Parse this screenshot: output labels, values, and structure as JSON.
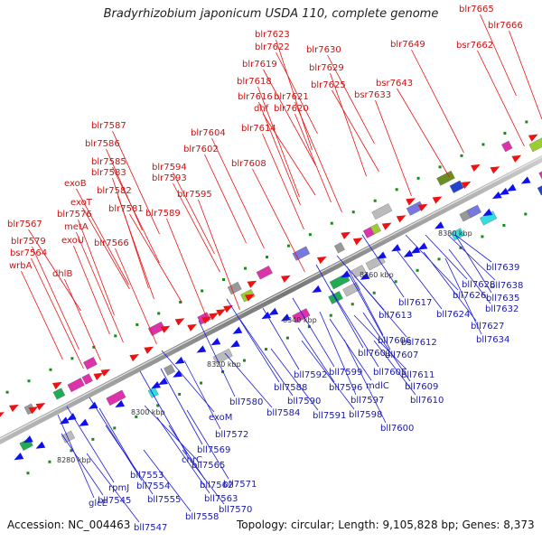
{
  "title": "Bradyrhizobium japonicum USDA 110, complete genome",
  "footer": {
    "accession": "Accession: NC_004463",
    "topology": "Topology: circular; Length: 9,105,828 bp; Genes: 8,373"
  },
  "kbp_ticks": [
    "8280 kbp",
    "8300 kbp",
    "8320 kbp",
    "8340 kbp",
    "8360 kbp",
    "8380 kbp"
  ],
  "top_labels": [
    "blr7665",
    "blr7666",
    "bsr7662",
    "blr7649",
    "blr7623",
    "blr7622",
    "blr7630",
    "blr7619",
    "blr7629",
    "blr7618",
    "blr7625",
    "bsr7643",
    "bsr7633",
    "blr7616",
    "blr7621",
    "dhf",
    "blr7620",
    "blr7614",
    "blr7587",
    "blr7604",
    "blr7586",
    "blr7602",
    "blr7585",
    "blr7608",
    "blr7583",
    "blr7594",
    "blr7593",
    "exoB",
    "blr7582",
    "blr7595",
    "exoT",
    "blr7581",
    "blr7576",
    "blr7589",
    "metA",
    "blr7567",
    "exoU",
    "blr7566",
    "blr7579",
    "bsr7564",
    "dhlB",
    "wrbA"
  ],
  "bottom_labels": [
    "bll7639",
    "bll7628",
    "bll7638",
    "bll7626",
    "bll7635",
    "bll7632",
    "bll7624",
    "bll7627",
    "bll7634",
    "bll7617",
    "bll7613",
    "bsl7612",
    "bll7606",
    "bll7607",
    "bll7601",
    "bll7611",
    "bll7592",
    "bll7599",
    "bll7605",
    "bll7588",
    "bll7596",
    "mdlC",
    "bll7609",
    "bll7590",
    "bll7597",
    "bll7610",
    "bll7591",
    "bll7598",
    "bll7580",
    "bll7600",
    "bll7584",
    "exoM",
    "bll7572",
    "bll7569",
    "chrC",
    "bll7565",
    "bll7553",
    "bll7571",
    "rpmJ",
    "bll7554",
    "bll7562",
    "bll7545",
    "bll7555",
    "bll7563",
    "glcE",
    "bll7570",
    "bll7558",
    "bll7547"
  ],
  "colors": {
    "top_strand": "#cc1111",
    "bottom_strand": "#1a1aaa"
  }
}
